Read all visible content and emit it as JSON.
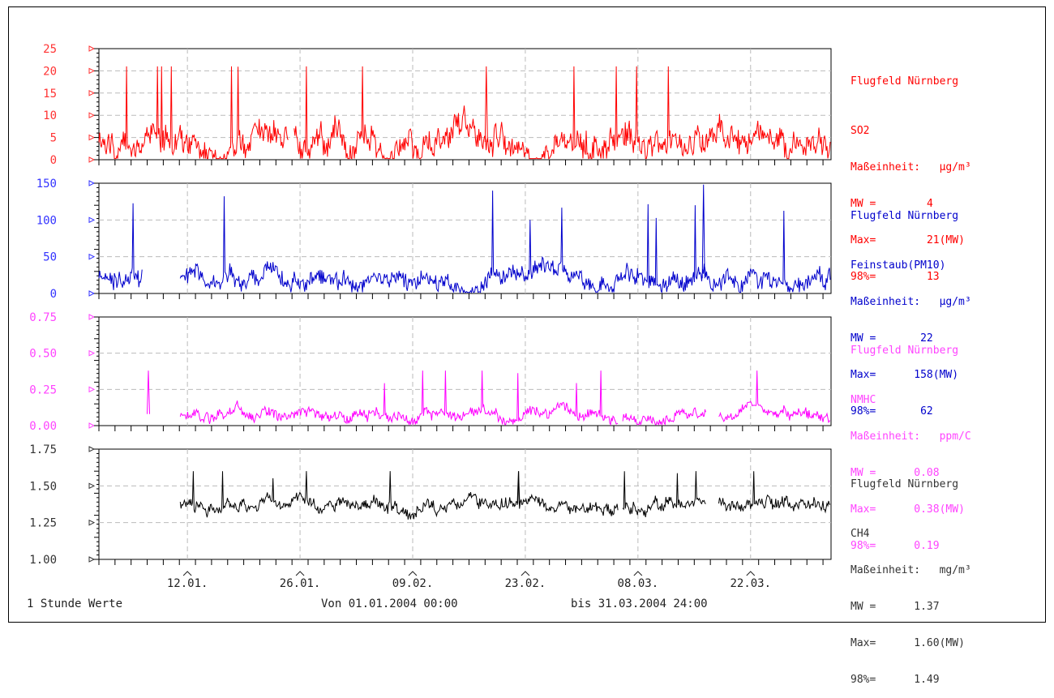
{
  "chart_data": [
    {
      "type": "line",
      "title": "Flugfeld Nürnberg",
      "series": [
        {
          "name": "SO2",
          "color": "#ff0000"
        }
      ],
      "unit_label": "Maßeinheit:",
      "unit": "µg/m³",
      "stats": [
        {
          "label": "MW =",
          "value": "4"
        },
        {
          "label": "Max=",
          "value": "21(MW)"
        },
        {
          "label": "98%=",
          "value": "13"
        }
      ],
      "ylim": [
        0,
        25
      ],
      "yticks": [
        "0",
        "5",
        "10",
        "15",
        "20",
        "25"
      ],
      "mean": 4,
      "max": 21,
      "p98": 13,
      "missing": [
        [
          1.69,
          1.73
        ]
      ]
    },
    {
      "type": "line",
      "title": "Flugfeld Nürnberg",
      "series": [
        {
          "name": "Feinstaub(PM10)",
          "color": "#0000cc"
        }
      ],
      "unit_label": "Maßeinheit:",
      "unit": "µg/m³",
      "stats": [
        {
          "label": "MW =",
          "value": "22"
        },
        {
          "label": "Max=",
          "value": "158(MW)"
        },
        {
          "label": "98%=",
          "value": "62"
        }
      ],
      "ylim": [
        0,
        160
      ],
      "yticks": [
        "0",
        "50",
        "100",
        "150"
      ],
      "mean": 22,
      "max": 158,
      "p98": 62,
      "missing": [
        [
          0.39,
          0.72
        ]
      ]
    },
    {
      "type": "line",
      "title": "Flugfeld Nürnberg",
      "series": [
        {
          "name": "NMHC",
          "color": "#ff00ff"
        }
      ],
      "unit_label": "Maßeinheit:",
      "unit": "ppm/C",
      "stats": [
        {
          "label": "MW =",
          "value": "0.08"
        },
        {
          "label": "Max=",
          "value": "0.38(MW)"
        },
        {
          "label": "98%=",
          "value": "0.19"
        }
      ],
      "ylim": [
        0.0,
        0.75
      ],
      "yticks": [
        "0.00",
        "0.25",
        "0.50",
        "0.75"
      ],
      "mean": 0.08,
      "max": 0.38,
      "p98": 0.19,
      "missing": [
        [
          0,
          0.72
        ],
        [
          4.61,
          4.65
        ],
        [
          5.39,
          5.5
        ]
      ]
    },
    {
      "type": "line",
      "title": "Flugfeld Nürnberg",
      "series": [
        {
          "name": "CH4",
          "color": "#000000"
        }
      ],
      "unit_label": "Maßeinheit:",
      "unit": "mg/m³",
      "stats": [
        {
          "label": "MW =",
          "value": "1.37"
        },
        {
          "label": "Max=",
          "value": "1.60(MW)"
        },
        {
          "label": "98%=",
          "value": "1.49"
        }
      ],
      "ylim": [
        1.0,
        1.75
      ],
      "yticks": [
        "1.00",
        "1.25",
        "1.50",
        "1.75"
      ],
      "mean": 1.37,
      "max": 1.6,
      "p98": 1.49,
      "missing": [
        [
          0,
          0.72
        ],
        [
          4.61,
          4.65
        ],
        [
          5.39,
          5.5
        ]
      ]
    }
  ],
  "x_axis": {
    "start": "01.01.2004",
    "end": "31.03.2004",
    "ticks": [
      "12.01.",
      "26.01.",
      "09.02.",
      "23.02.",
      "08.03.",
      "22.03."
    ]
  },
  "footer": {
    "interval": "1 Stunde Werte",
    "from": "Von 01.01.2004 00:00",
    "to": "bis 31.03.2004 24:00"
  }
}
